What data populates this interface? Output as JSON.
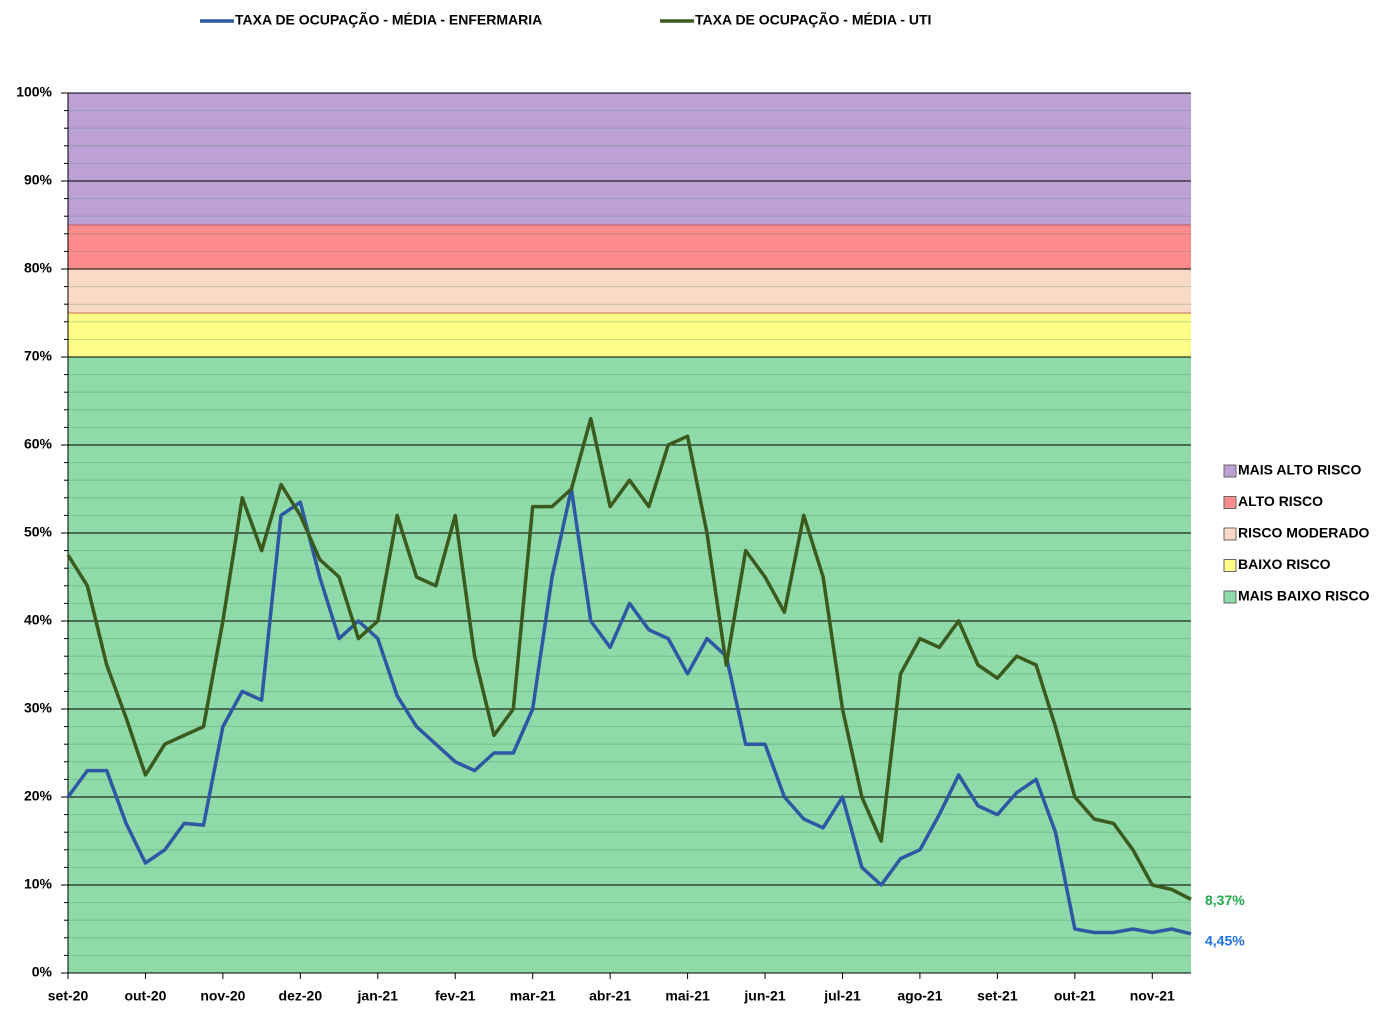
{
  "chart_data": {
    "type": "line",
    "categories": [
      "set-20",
      null,
      null,
      null,
      "out-20",
      null,
      null,
      null,
      "nov-20",
      null,
      null,
      null,
      "dez-20",
      null,
      null,
      null,
      "jan-21",
      null,
      null,
      null,
      "fev-21",
      null,
      null,
      null,
      "mar-21",
      null,
      null,
      null,
      "abr-21",
      null,
      null,
      null,
      "mai-21",
      null,
      null,
      null,
      "jun-21",
      null,
      null,
      null,
      "jul-21",
      null,
      null,
      null,
      "ago-21",
      null,
      null,
      null,
      "set-21",
      null,
      null,
      null,
      "out-21",
      null,
      null,
      null,
      "nov-21",
      null,
      null
    ],
    "series": [
      {
        "name": "TAXA DE OCUPAÇÃO - MÉDIA - ENFERMARIA",
        "color": "#2e58a4",
        "label_color": "#1f6fe0",
        "values": [
          20,
          23,
          23,
          17,
          12.5,
          14,
          17,
          16.8,
          28,
          32,
          31,
          52,
          53.5,
          45,
          38,
          40,
          38,
          31.5,
          28,
          26,
          24,
          23,
          25,
          25,
          30,
          45,
          55,
          40,
          37,
          42,
          39,
          38,
          34,
          38,
          36,
          26,
          26,
          20,
          17.5,
          16.5,
          20,
          12,
          10,
          13,
          14,
          18,
          22.5,
          19,
          18,
          20.5,
          22,
          16,
          5,
          4.6,
          4.6,
          5,
          4.6,
          5,
          4.45
        ],
        "value_labels": [
          null,
          null,
          null,
          null,
          null,
          null,
          null,
          null,
          null,
          null,
          null,
          null,
          null,
          null,
          null,
          null,
          null,
          null,
          null,
          null,
          null,
          null,
          null,
          null,
          null,
          null,
          null,
          null,
          null,
          null,
          null,
          null,
          null,
          null,
          null,
          null,
          null,
          null,
          null,
          null,
          null,
          null,
          null,
          null,
          null,
          null,
          null,
          null,
          null,
          null,
          null,
          null,
          null,
          null,
          null,
          null,
          null,
          null,
          "4,45%"
        ]
      },
      {
        "name": "TAXA DE OCUPAÇÃO - MÉDIA - UTI",
        "color": "#3b5a1e",
        "label_color": "#22a84a",
        "values": [
          47.5,
          44,
          35,
          29,
          22.5,
          26,
          27,
          28,
          40,
          54,
          48,
          55.5,
          52,
          47,
          45,
          38,
          40,
          52,
          45,
          44,
          52,
          36,
          27,
          30,
          53,
          53,
          55,
          63,
          53,
          56,
          53,
          60,
          61,
          50,
          35,
          48,
          45,
          41,
          52,
          45,
          30,
          20,
          15,
          34,
          38,
          37,
          40,
          35,
          33.5,
          36,
          35,
          28,
          20,
          17.5,
          17,
          14,
          10,
          9.5,
          8.37
        ],
        "value_labels": [
          null,
          null,
          null,
          null,
          null,
          null,
          null,
          null,
          null,
          null,
          null,
          null,
          null,
          null,
          null,
          null,
          null,
          null,
          null,
          null,
          null,
          null,
          null,
          null,
          null,
          null,
          null,
          null,
          null,
          null,
          null,
          null,
          null,
          null,
          null,
          null,
          null,
          null,
          null,
          null,
          null,
          null,
          null,
          null,
          null,
          null,
          null,
          null,
          null,
          null,
          null,
          null,
          null,
          null,
          null,
          null,
          null,
          null,
          "8,37%"
        ]
      }
    ],
    "bands": [
      {
        "name": "MAIS ALTO RISCO",
        "color": "#bda0d6",
        "from": 85,
        "to": 100
      },
      {
        "name": "ALTO RISCO",
        "color": "#ff8c8c",
        "from": 80,
        "to": 85
      },
      {
        "name": "RISCO MODERADO",
        "color": "#fadac4",
        "from": 75,
        "to": 80
      },
      {
        "name": "BAIXO RISCO",
        "color": "#fdfd87",
        "from": 70,
        "to": 75
      },
      {
        "name": "MAIS BAIXO RISCO",
        "color": "#8fdaa9",
        "from": 0,
        "to": 70
      }
    ],
    "ylim": [
      0,
      100
    ],
    "yticks": [
      {
        "value": 0,
        "label": "0%"
      },
      {
        "value": 10,
        "label": "10%"
      },
      {
        "value": 20,
        "label": "20%"
      },
      {
        "value": 30,
        "label": "30%"
      },
      {
        "value": 40,
        "label": "40%"
      },
      {
        "value": 50,
        "label": "50%"
      },
      {
        "value": 60,
        "label": "60%"
      },
      {
        "value": 70,
        "label": "70%"
      },
      {
        "value": 80,
        "label": "80%"
      },
      {
        "value": 90,
        "label": "90%"
      },
      {
        "value": 100,
        "label": "100%"
      }
    ],
    "minor_grid_step": 2,
    "grid": true
  }
}
